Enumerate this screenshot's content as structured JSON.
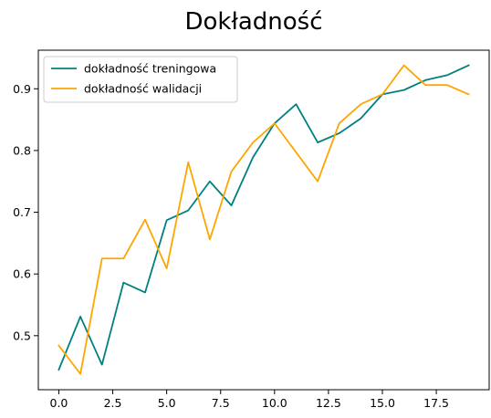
{
  "chart_data": {
    "type": "line",
    "title": "Dokładność",
    "xlabel": "",
    "ylabel": "",
    "x": [
      0,
      1,
      2,
      3,
      4,
      5,
      6,
      7,
      8,
      9,
      10,
      11,
      12,
      13,
      14,
      15,
      16,
      17,
      18,
      19
    ],
    "xlim": [
      -0.95,
      19.95
    ],
    "ylim": [
      0.4125,
      0.9625
    ],
    "xticks": [
      0.0,
      2.5,
      5.0,
      7.5,
      10.0,
      12.5,
      15.0,
      17.5
    ],
    "xtick_labels": [
      "0.0",
      "2.5",
      "5.0",
      "7.5",
      "10.0",
      "12.5",
      "15.0",
      "17.5"
    ],
    "yticks": [
      0.5,
      0.6,
      0.7,
      0.8,
      0.9
    ],
    "ytick_labels": [
      "0.5",
      "0.6",
      "0.7",
      "0.8",
      "0.9"
    ],
    "grid": false,
    "legend_position": "top-left",
    "series": [
      {
        "name": "dokładność treningowa",
        "color": "#008080",
        "values": [
          0.445,
          0.531,
          0.453,
          0.586,
          0.57,
          0.687,
          0.703,
          0.75,
          0.711,
          0.789,
          0.844,
          0.875,
          0.813,
          0.828,
          0.852,
          0.891,
          0.898,
          0.914,
          0.922,
          0.938
        ]
      },
      {
        "name": "dokładność walidacji",
        "color": "#FFA500",
        "values": [
          0.484,
          0.438,
          0.625,
          0.625,
          0.688,
          0.609,
          0.781,
          0.656,
          0.766,
          0.813,
          0.844,
          0.797,
          0.75,
          0.844,
          0.875,
          0.891,
          0.938,
          0.906,
          0.906,
          0.891
        ]
      }
    ]
  }
}
